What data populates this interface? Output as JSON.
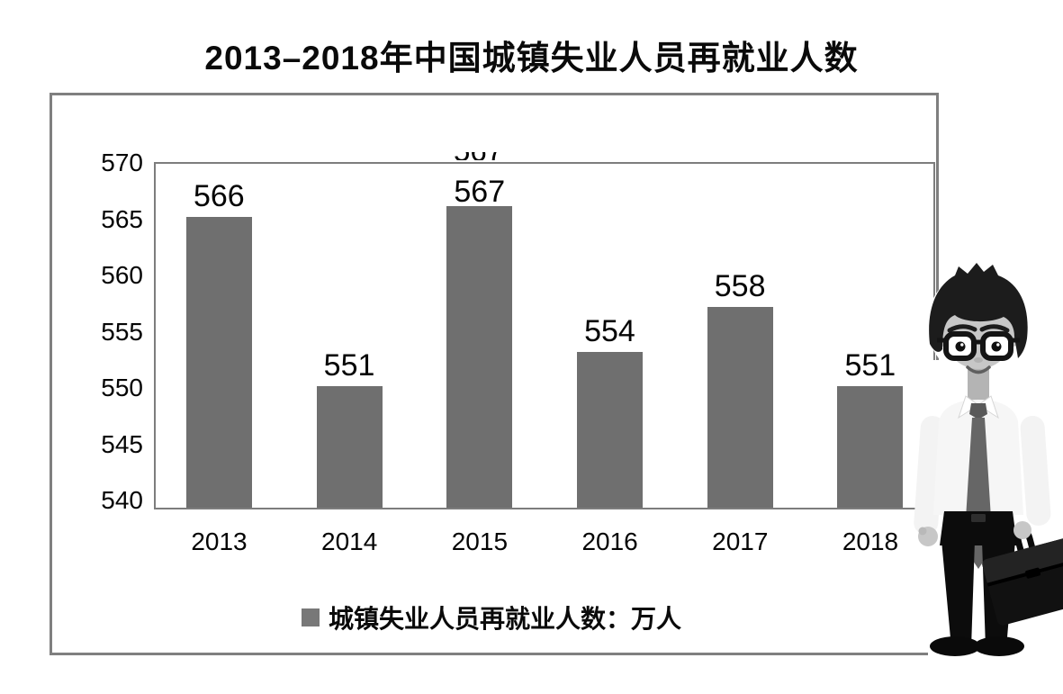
{
  "title": "2013–2018年中国城镇失业人员再就业人数",
  "chart_data": {
    "type": "bar",
    "title": "2013–2018年中国城镇失业人员再就业人数",
    "categories": [
      "2013",
      "2014",
      "2015",
      "2016",
      "2017",
      "2018"
    ],
    "values": [
      566,
      551,
      567,
      554,
      558,
      551
    ],
    "series_name": "城镇失业人员再就业人数：万人",
    "unit": "万人",
    "xlabel": "",
    "ylabel": "",
    "ylim": [
      540,
      570
    ],
    "yticks": [
      570,
      565,
      560,
      555,
      550,
      545,
      540
    ],
    "grid": true,
    "legend_position": "bottom",
    "bar_color": "#6f6f6f"
  },
  "legend": {
    "label": "城镇失业人员再就业人数：万人",
    "marker_color": "#787878"
  },
  "artifact": {
    "clipped_label": "567"
  },
  "colors": {
    "bar": "#6f6f6f",
    "gridline": "#8e8e8e",
    "border": "#7f7f7f",
    "text": "#000000"
  }
}
